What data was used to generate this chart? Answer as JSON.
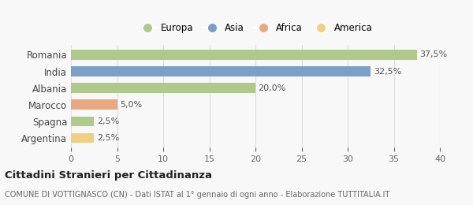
{
  "categories": [
    "Romania",
    "India",
    "Albania",
    "Marocco",
    "Spagna",
    "Argentina"
  ],
  "values": [
    37.5,
    32.5,
    20.0,
    5.0,
    2.5,
    2.5
  ],
  "bar_colors": [
    "#aec98a",
    "#7b9fc7",
    "#aec98a",
    "#e8a882",
    "#aec98a",
    "#f0d080"
  ],
  "labels": [
    "37,5%",
    "32,5%",
    "20,0%",
    "5,0%",
    "2,5%",
    "2,5%"
  ],
  "legend": [
    {
      "label": "Europa",
      "color": "#aec98a"
    },
    {
      "label": "Asia",
      "color": "#7b9fc7"
    },
    {
      "label": "Africa",
      "color": "#e8a882"
    },
    {
      "label": "America",
      "color": "#f0d080"
    }
  ],
  "xlim": [
    0,
    40
  ],
  "xticks": [
    0,
    5,
    10,
    15,
    20,
    25,
    30,
    35,
    40
  ],
  "title": "Cittadini Stranieri per Cittadinanza",
  "subtitle": "COMUNE DI VOTTIGNASCO (CN) - Dati ISTAT al 1° gennaio di ogni anno - Elaborazione TUTTITALIA.IT",
  "background_color": "#f8f8f8",
  "grid_color": "#dddddd"
}
